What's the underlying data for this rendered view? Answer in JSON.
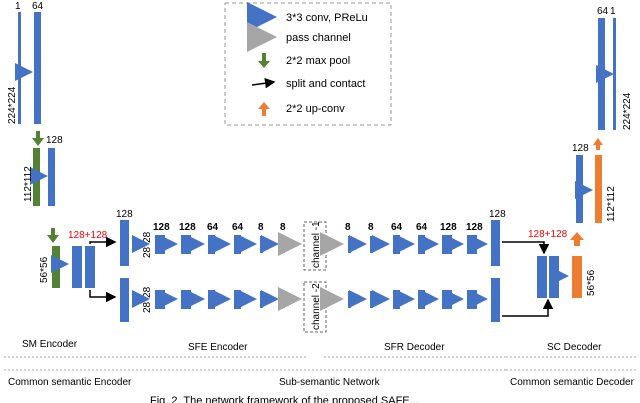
{
  "legend": {
    "conv": "3*3 conv, PReLu",
    "pass": "pass channel",
    "pool": "2*2 max pool",
    "split": "split and contact",
    "upconv": "2*2 up-conv"
  },
  "sm": {
    "c1": "1",
    "c2": "64",
    "c3": "128",
    "s1": "224*224",
    "s2": "112*112",
    "s3": "56*56",
    "concat": "128+128"
  },
  "sfe": {
    "c1": "128",
    "cA": "128",
    "cB": "128",
    "cC": "64",
    "cD": "64",
    "cE": "8",
    "cF": "8",
    "size1": "28*28",
    "size2": "28*28"
  },
  "channels": {
    "ch1": "channel -1",
    "ch2": "channel -2"
  },
  "sfr": {
    "cA": "8",
    "cB": "8",
    "cC": "64",
    "cD": "64",
    "cE": "128",
    "cF": "128"
  },
  "sc": {
    "concat": "128+128",
    "c128": "128",
    "c64": "64",
    "c1": "1",
    "s56": "56*56",
    "s112": "112*112",
    "s224": "224*224"
  },
  "sections": {
    "sm_encoder": "SM Encoder",
    "sfe_encoder": "SFE Encoder",
    "sfr_decoder": "SFR Decoder",
    "sc_decoder": "SC Decoder",
    "common_encoder": "Common semantic Encoder",
    "subsemantic": "Sub-semantic Network",
    "common_decoder": "Common semantic Decoder"
  },
  "caption": "Fig. 2. The network framework of the proposed SAFE...",
  "colors": {
    "blue": "#4472c4",
    "gray": "#a6a6a6",
    "green": "#548235",
    "orange": "#ed7d31",
    "red": "#ff0000"
  }
}
